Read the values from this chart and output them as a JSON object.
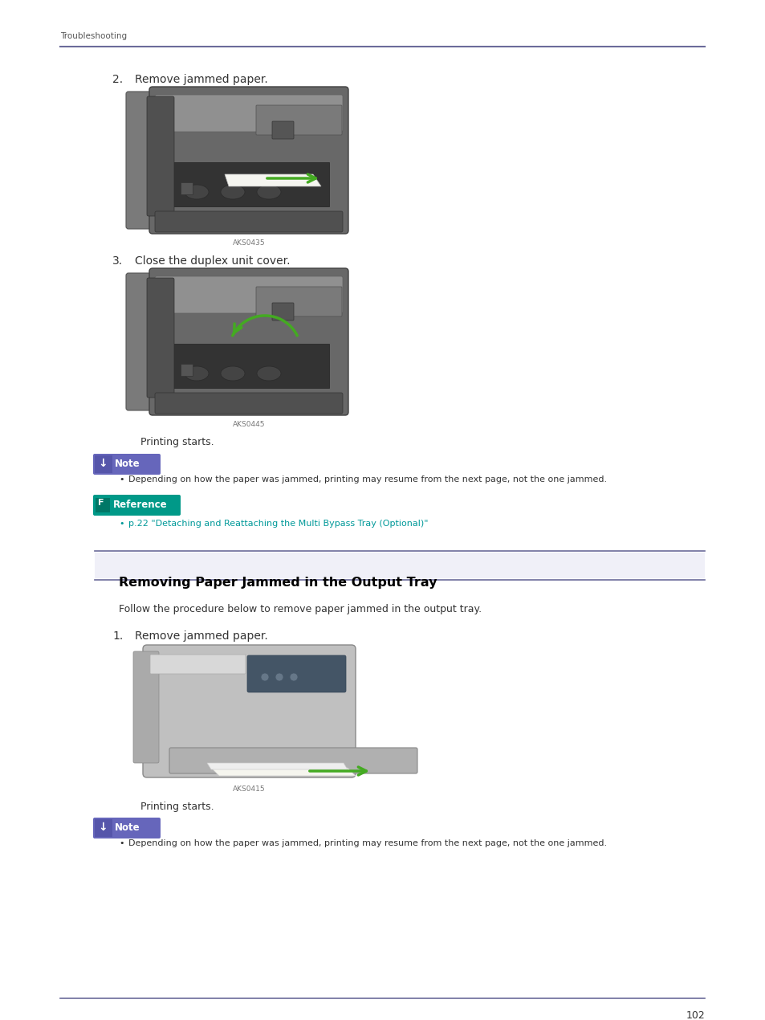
{
  "page_number": "102",
  "header_text": "Troubleshooting",
  "header_line_color": "#6b6b9a",
  "footer_line_color": "#6b6b9a",
  "background_color": "#ffffff",
  "text_color": "#000000",
  "step2_label": "2.",
  "step2_text": "Remove jammed paper.",
  "step2_image_code": "AKS0435",
  "step3_label": "3.",
  "step3_text": "Close the duplex unit cover.",
  "step3_image_code": "AKS0445",
  "printing_starts_1": "Printing starts.",
  "note_box_color": "#6666bb",
  "note_text_color": "#ffffff",
  "note_label": "Note",
  "note_bullet_1": "Depending on how the paper was jammed, printing may resume from the next page, not the one jammed.",
  "reference_box_color": "#009988",
  "reference_label": "Reference",
  "reference_link": "p.22 \"Detaching and Reattaching the Multi Bypass Tray (Optional)\"",
  "section_title": "Removing Paper Jammed in the Output Tray",
  "section_title_color": "#000000",
  "section_line_color": "#6b6b9a",
  "intro_text": "Follow the procedure below to remove paper jammed in the output tray.",
  "step1_label": "1.",
  "step1_text": "Remove jammed paper.",
  "step1_image_code": "AKS0415",
  "printing_starts_2": "Printing starts.",
  "note_bullet_2": "Depending on how the paper was jammed, printing may resume from the next page, not the one jammed.",
  "link_color": "#009999"
}
